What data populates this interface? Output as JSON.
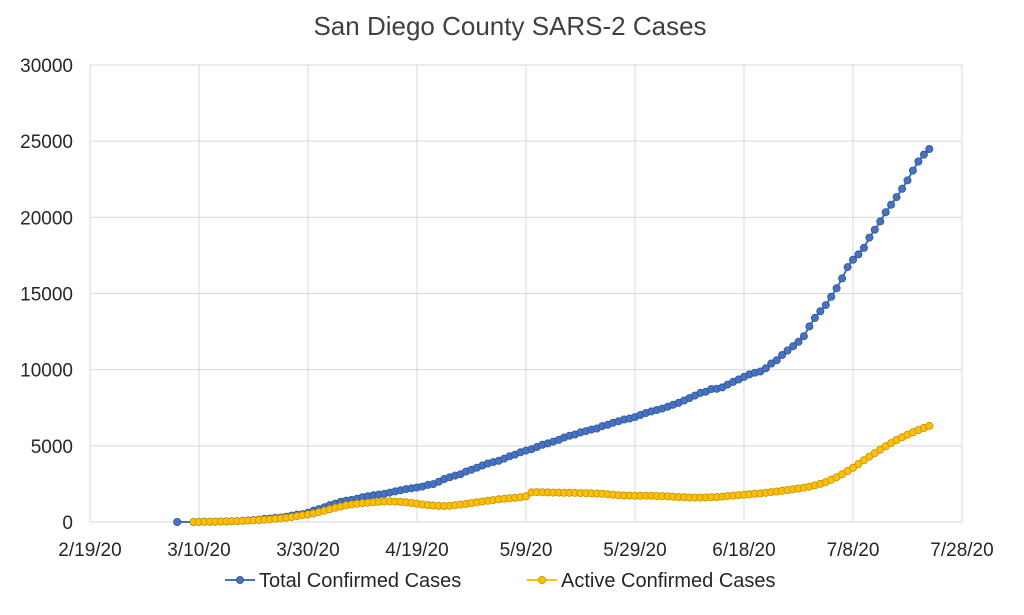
{
  "chart_data": {
    "type": "scatter",
    "title": "San Diego County SARS-2 Cases",
    "xlabel": "",
    "ylabel": "",
    "x_axis": {
      "min": "2020-02-19",
      "max": "2020-07-28",
      "tick_labels": [
        "2/19/20",
        "3/10/20",
        "3/30/20",
        "4/19/20",
        "5/9/20",
        "5/29/20",
        "6/18/20",
        "7/8/20",
        "7/28/20"
      ]
    },
    "y_axis": {
      "min": 0,
      "max": 30000,
      "tick_labels": [
        "0",
        "5000",
        "10000",
        "15000",
        "20000",
        "25000",
        "30000"
      ]
    },
    "grid": true,
    "legend_position": "bottom",
    "series": [
      {
        "name": "Total Confirmed Cases",
        "color": "#4472C4",
        "points": [
          [
            "2020-03-06",
            0
          ],
          [
            "2020-03-09",
            0
          ],
          [
            "2020-03-10",
            5
          ],
          [
            "2020-03-11",
            10
          ],
          [
            "2020-03-12",
            14
          ],
          [
            "2020-03-13",
            19
          ],
          [
            "2020-03-14",
            25
          ],
          [
            "2020-03-15",
            40
          ],
          [
            "2020-03-16",
            55
          ],
          [
            "2020-03-17",
            60
          ],
          [
            "2020-03-18",
            80
          ],
          [
            "2020-03-19",
            104
          ],
          [
            "2020-03-20",
            131
          ],
          [
            "2020-03-21",
            159
          ],
          [
            "2020-03-22",
            205
          ],
          [
            "2020-03-23",
            230
          ],
          [
            "2020-03-24",
            266
          ],
          [
            "2020-03-25",
            297
          ],
          [
            "2020-03-26",
            341
          ],
          [
            "2020-03-27",
            417
          ],
          [
            "2020-03-28",
            488
          ],
          [
            "2020-03-29",
            519
          ],
          [
            "2020-03-30",
            603
          ],
          [
            "2020-03-31",
            734
          ],
          [
            "2020-04-01",
            849
          ],
          [
            "2020-04-02",
            966
          ],
          [
            "2020-04-03",
            1112
          ],
          [
            "2020-04-04",
            1209
          ],
          [
            "2020-04-05",
            1326
          ],
          [
            "2020-04-06",
            1404
          ],
          [
            "2020-04-07",
            1454
          ],
          [
            "2020-04-08",
            1530
          ],
          [
            "2020-04-09",
            1628
          ],
          [
            "2020-04-10",
            1693
          ],
          [
            "2020-04-11",
            1761
          ],
          [
            "2020-04-12",
            1804
          ],
          [
            "2020-04-13",
            1847
          ],
          [
            "2020-04-14",
            1930
          ],
          [
            "2020-04-15",
            2012
          ],
          [
            "2020-04-16",
            2087
          ],
          [
            "2020-04-17",
            2158
          ],
          [
            "2020-04-18",
            2213
          ],
          [
            "2020-04-19",
            2268
          ],
          [
            "2020-04-20",
            2325
          ],
          [
            "2020-04-21",
            2434
          ],
          [
            "2020-04-22",
            2491
          ],
          [
            "2020-04-23",
            2643
          ],
          [
            "2020-04-24",
            2826
          ],
          [
            "2020-04-25",
            2943
          ],
          [
            "2020-04-26",
            3043
          ],
          [
            "2020-04-27",
            3141
          ],
          [
            "2020-04-28",
            3314
          ],
          [
            "2020-04-29",
            3432
          ],
          [
            "2020-04-30",
            3564
          ],
          [
            "2020-05-01",
            3711
          ],
          [
            "2020-05-02",
            3842
          ],
          [
            "2020-05-03",
            3930
          ],
          [
            "2020-05-04",
            4020
          ],
          [
            "2020-05-05",
            4160
          ],
          [
            "2020-05-06",
            4319
          ],
          [
            "2020-05-07",
            4427
          ],
          [
            "2020-05-08",
            4574
          ],
          [
            "2020-05-09",
            4690
          ],
          [
            "2020-05-10",
            4776
          ],
          [
            "2020-05-11",
            4926
          ],
          [
            "2020-05-12",
            5065
          ],
          [
            "2020-05-13",
            5161
          ],
          [
            "2020-05-14",
            5278
          ],
          [
            "2020-05-15",
            5391
          ],
          [
            "2020-05-16",
            5548
          ],
          [
            "2020-05-17",
            5662
          ],
          [
            "2020-05-18",
            5746
          ],
          [
            "2020-05-19",
            5884
          ],
          [
            "2020-05-20",
            5965
          ],
          [
            "2020-05-21",
            6063
          ],
          [
            "2020-05-22",
            6140
          ],
          [
            "2020-05-23",
            6297
          ],
          [
            "2020-05-24",
            6381
          ],
          [
            "2020-05-25",
            6520
          ],
          [
            "2020-05-26",
            6618
          ],
          [
            "2020-05-27",
            6726
          ],
          [
            "2020-05-28",
            6794
          ],
          [
            "2020-05-29",
            6885
          ],
          [
            "2020-05-30",
            7027
          ],
          [
            "2020-05-31",
            7153
          ],
          [
            "2020-06-01",
            7259
          ],
          [
            "2020-06-02",
            7354
          ],
          [
            "2020-06-03",
            7441
          ],
          [
            "2020-06-04",
            7563
          ],
          [
            "2020-06-05",
            7695
          ],
          [
            "2020-06-06",
            7820
          ],
          [
            "2020-06-07",
            7976
          ],
          [
            "2020-06-08",
            8131
          ],
          [
            "2020-06-09",
            8300
          ],
          [
            "2020-06-10",
            8474
          ],
          [
            "2020-06-11",
            8551
          ],
          [
            "2020-06-12",
            8724
          ],
          [
            "2020-06-13",
            8744
          ],
          [
            "2020-06-14",
            8837
          ],
          [
            "2020-06-15",
            9018
          ],
          [
            "2020-06-16",
            9198
          ],
          [
            "2020-06-17",
            9357
          ],
          [
            "2020-06-18",
            9523
          ],
          [
            "2020-06-19",
            9689
          ],
          [
            "2020-06-20",
            9800
          ],
          [
            "2020-06-21",
            9878
          ],
          [
            "2020-06-22",
            10092
          ],
          [
            "2020-06-23",
            10402
          ],
          [
            "2020-06-24",
            10617
          ],
          [
            "2020-06-25",
            10964
          ],
          [
            "2020-06-26",
            11258
          ],
          [
            "2020-06-27",
            11539
          ],
          [
            "2020-06-28",
            11827
          ],
          [
            "2020-06-29",
            12198
          ],
          [
            "2020-06-30",
            12837
          ],
          [
            "2020-07-01",
            13395
          ],
          [
            "2020-07-02",
            13832
          ],
          [
            "2020-07-03",
            14237
          ],
          [
            "2020-07-04",
            14786
          ],
          [
            "2020-07-05",
            15342
          ],
          [
            "2020-07-06",
            15992
          ],
          [
            "2020-07-07",
            16736
          ],
          [
            "2020-07-08",
            17220
          ],
          [
            "2020-07-09",
            17567
          ],
          [
            "2020-07-10",
            17994
          ],
          [
            "2020-07-11",
            18669
          ],
          [
            "2020-07-12",
            19189
          ],
          [
            "2020-07-13",
            19730
          ],
          [
            "2020-07-14",
            20337
          ],
          [
            "2020-07-15",
            20832
          ],
          [
            "2020-07-16",
            21329
          ],
          [
            "2020-07-17",
            21874
          ],
          [
            "2020-07-18",
            22424
          ],
          [
            "2020-07-19",
            23065
          ],
          [
            "2020-07-20",
            23664
          ],
          [
            "2020-07-21",
            24121
          ],
          [
            "2020-07-22",
            24488
          ]
        ]
      },
      {
        "name": "Active Confirmed Cases",
        "color": "#FFC000",
        "points": [
          [
            "2020-03-09",
            0
          ],
          [
            "2020-03-10",
            5
          ],
          [
            "2020-03-11",
            10
          ],
          [
            "2020-03-12",
            14
          ],
          [
            "2020-03-13",
            19
          ],
          [
            "2020-03-14",
            25
          ],
          [
            "2020-03-15",
            40
          ],
          [
            "2020-03-16",
            55
          ],
          [
            "2020-03-17",
            60
          ],
          [
            "2020-03-18",
            80
          ],
          [
            "2020-03-19",
            95
          ],
          [
            "2020-03-20",
            110
          ],
          [
            "2020-03-21",
            130
          ],
          [
            "2020-03-22",
            150
          ],
          [
            "2020-03-23",
            180
          ],
          [
            "2020-03-24",
            210
          ],
          [
            "2020-03-25",
            240
          ],
          [
            "2020-03-26",
            280
          ],
          [
            "2020-03-27",
            330
          ],
          [
            "2020-03-28",
            390
          ],
          [
            "2020-03-29",
            440
          ],
          [
            "2020-03-30",
            500
          ],
          [
            "2020-03-31",
            560
          ],
          [
            "2020-04-01",
            650
          ],
          [
            "2020-04-02",
            740
          ],
          [
            "2020-04-03",
            840
          ],
          [
            "2020-04-04",
            930
          ],
          [
            "2020-04-05",
            1020
          ],
          [
            "2020-04-06",
            1100
          ],
          [
            "2020-04-07",
            1150
          ],
          [
            "2020-04-08",
            1200
          ],
          [
            "2020-04-09",
            1240
          ],
          [
            "2020-04-10",
            1270
          ],
          [
            "2020-04-11",
            1300
          ],
          [
            "2020-04-12",
            1320
          ],
          [
            "2020-04-13",
            1340
          ],
          [
            "2020-04-14",
            1350
          ],
          [
            "2020-04-15",
            1340
          ],
          [
            "2020-04-16",
            1320
          ],
          [
            "2020-04-17",
            1290
          ],
          [
            "2020-04-18",
            1250
          ],
          [
            "2020-04-19",
            1200
          ],
          [
            "2020-04-20",
            1150
          ],
          [
            "2020-04-21",
            1110
          ],
          [
            "2020-04-22",
            1080
          ],
          [
            "2020-04-23",
            1060
          ],
          [
            "2020-04-24",
            1050
          ],
          [
            "2020-04-25",
            1070
          ],
          [
            "2020-04-26",
            1100
          ],
          [
            "2020-04-27",
            1140
          ],
          [
            "2020-04-28",
            1190
          ],
          [
            "2020-04-29",
            1240
          ],
          [
            "2020-04-30",
            1290
          ],
          [
            "2020-05-01",
            1340
          ],
          [
            "2020-05-02",
            1390
          ],
          [
            "2020-05-03",
            1440
          ],
          [
            "2020-05-04",
            1490
          ],
          [
            "2020-05-05",
            1530
          ],
          [
            "2020-05-06",
            1560
          ],
          [
            "2020-05-07",
            1590
          ],
          [
            "2020-05-08",
            1620
          ],
          [
            "2020-05-09",
            1680
          ],
          [
            "2020-05-10",
            1940
          ],
          [
            "2020-05-11",
            1960
          ],
          [
            "2020-05-12",
            1950
          ],
          [
            "2020-05-13",
            1940
          ],
          [
            "2020-05-14",
            1930
          ],
          [
            "2020-05-15",
            1930
          ],
          [
            "2020-05-16",
            1920
          ],
          [
            "2020-05-17",
            1920
          ],
          [
            "2020-05-18",
            1910
          ],
          [
            "2020-05-19",
            1900
          ],
          [
            "2020-05-20",
            1890
          ],
          [
            "2020-05-21",
            1880
          ],
          [
            "2020-05-22",
            1870
          ],
          [
            "2020-05-23",
            1850
          ],
          [
            "2020-05-24",
            1820
          ],
          [
            "2020-05-25",
            1790
          ],
          [
            "2020-05-26",
            1760
          ],
          [
            "2020-05-27",
            1740
          ],
          [
            "2020-05-28",
            1730
          ],
          [
            "2020-05-29",
            1720
          ],
          [
            "2020-05-30",
            1720
          ],
          [
            "2020-05-31",
            1720
          ],
          [
            "2020-06-01",
            1720
          ],
          [
            "2020-06-02",
            1710
          ],
          [
            "2020-06-03",
            1700
          ],
          [
            "2020-06-04",
            1680
          ],
          [
            "2020-06-05",
            1660
          ],
          [
            "2020-06-06",
            1640
          ],
          [
            "2020-06-07",
            1620
          ],
          [
            "2020-06-08",
            1610
          ],
          [
            "2020-06-09",
            1600
          ],
          [
            "2020-06-10",
            1600
          ],
          [
            "2020-06-11",
            1610
          ],
          [
            "2020-06-12",
            1620
          ],
          [
            "2020-06-13",
            1640
          ],
          [
            "2020-06-14",
            1670
          ],
          [
            "2020-06-15",
            1700
          ],
          [
            "2020-06-16",
            1730
          ],
          [
            "2020-06-17",
            1760
          ],
          [
            "2020-06-18",
            1790
          ],
          [
            "2020-06-19",
            1820
          ],
          [
            "2020-06-20",
            1850
          ],
          [
            "2020-06-21",
            1880
          ],
          [
            "2020-06-22",
            1920
          ],
          [
            "2020-06-23",
            1960
          ],
          [
            "2020-06-24",
            2000
          ],
          [
            "2020-06-25",
            2050
          ],
          [
            "2020-06-26",
            2100
          ],
          [
            "2020-06-27",
            2150
          ],
          [
            "2020-06-28",
            2200
          ],
          [
            "2020-06-29",
            2260
          ],
          [
            "2020-06-30",
            2320
          ],
          [
            "2020-07-01",
            2400
          ],
          [
            "2020-07-02",
            2500
          ],
          [
            "2020-07-03",
            2620
          ],
          [
            "2020-07-04",
            2770
          ],
          [
            "2020-07-05",
            2940
          ],
          [
            "2020-07-06",
            3130
          ],
          [
            "2020-07-07",
            3340
          ],
          [
            "2020-07-08",
            3560
          ],
          [
            "2020-07-09",
            3800
          ],
          [
            "2020-07-10",
            4050
          ],
          [
            "2020-07-11",
            4290
          ],
          [
            "2020-07-12",
            4520
          ],
          [
            "2020-07-13",
            4750
          ],
          [
            "2020-07-14",
            4970
          ],
          [
            "2020-07-15",
            5180
          ],
          [
            "2020-07-16",
            5380
          ],
          [
            "2020-07-17",
            5560
          ],
          [
            "2020-07-18",
            5730
          ],
          [
            "2020-07-19",
            5890
          ],
          [
            "2020-07-20",
            6040
          ],
          [
            "2020-07-21",
            6180
          ],
          [
            "2020-07-22",
            6310
          ]
        ]
      }
    ]
  }
}
